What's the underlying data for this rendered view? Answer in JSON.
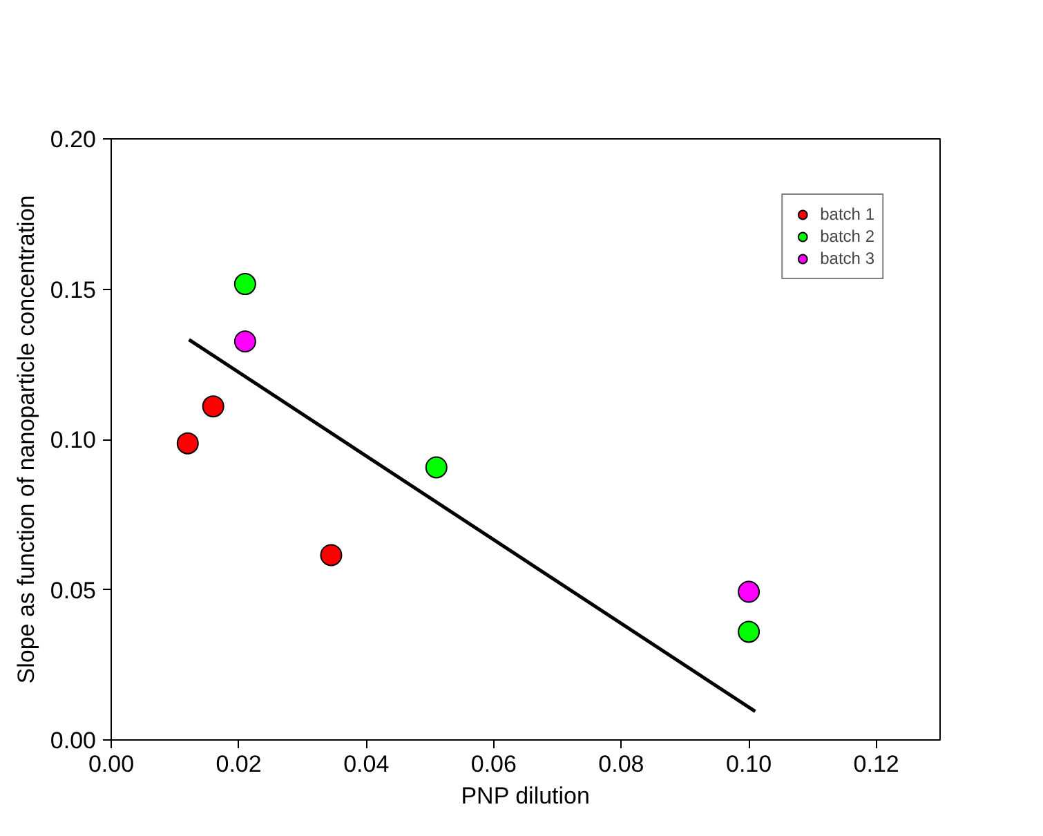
{
  "chart_data": {
    "type": "scatter",
    "xlabel": "PNP dilution",
    "ylabel": "Slope as function of nanoparticle concentration",
    "xlim": [
      0,
      0.13
    ],
    "ylim": [
      0,
      0.2
    ],
    "xticks": [
      {
        "value": 0,
        "label": "0.00"
      },
      {
        "value": 0.02,
        "label": "0.02"
      },
      {
        "value": 0.04,
        "label": "0.04"
      },
      {
        "value": 0.06,
        "label": "0.06"
      },
      {
        "value": 0.08,
        "label": "0.08"
      },
      {
        "value": 0.1,
        "label": "0.10"
      },
      {
        "value": 0.12,
        "label": "0.12"
      }
    ],
    "yticks": [
      {
        "value": 0,
        "label": "0.00"
      },
      {
        "value": 0.05,
        "label": "0.05"
      },
      {
        "value": 0.1,
        "label": "0.10"
      },
      {
        "value": 0.15,
        "label": "0.15"
      },
      {
        "value": 0.2,
        "label": "0.20"
      }
    ],
    "grid": false,
    "legend": "top right",
    "series": [
      {
        "name": "batch 1",
        "marker": "circle",
        "color": "#ff0000",
        "x": [
          0.012,
          0.016,
          0.0345
        ],
        "values": [
          0.0987,
          0.111,
          0.0615
        ]
      },
      {
        "name": "batch 2",
        "marker": "circle",
        "color": "#00ff00",
        "x": [
          0.021,
          0.051,
          0.1
        ],
        "values": [
          0.1517,
          0.0907,
          0.036
        ]
      },
      {
        "name": "batch 3",
        "marker": "circle",
        "color": "#ff00ff",
        "x": [
          0.021,
          0.1
        ],
        "values": [
          0.1326,
          0.0493
        ]
      },
      {
        "type": "line",
        "color": "#000000",
        "x": [
          0.0122,
          0.101
        ],
        "values": [
          0.1332,
          0.0095
        ]
      }
    ]
  }
}
